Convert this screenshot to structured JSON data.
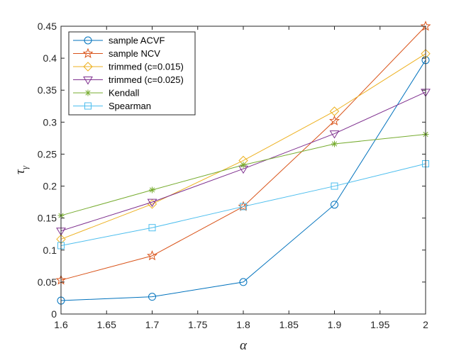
{
  "chart_data": {
    "type": "line",
    "title": "",
    "xlabel": "α",
    "ylabel": "τγ",
    "ylabel_main": "τ",
    "ylabel_sub": "γ",
    "xlim": [
      1.6,
      2.0
    ],
    "ylim": [
      0,
      0.45
    ],
    "x_ticks": [
      1.6,
      1.65,
      1.7,
      1.75,
      1.8,
      1.85,
      1.9,
      1.95,
      2
    ],
    "x_tick_labels": [
      "1.6",
      "1.65",
      "1.7",
      "1.75",
      "1.8",
      "1.85",
      "1.9",
      "1.95",
      "2"
    ],
    "y_ticks": [
      0,
      0.05,
      0.1,
      0.15,
      0.2,
      0.25,
      0.3,
      0.35,
      0.4,
      0.45
    ],
    "y_tick_labels": [
      "0",
      "0.05",
      "0.1",
      "0.15",
      "0.2",
      "0.25",
      "0.3",
      "0.35",
      "0.4",
      "0.45"
    ],
    "grid": false,
    "legend_position": "top-left",
    "x": [
      1.6,
      1.7,
      1.8,
      1.9,
      2.0
    ],
    "series": [
      {
        "name": "sample ACVF",
        "marker": "circle",
        "color": "#0072BD",
        "values": [
          0.021,
          0.027,
          0.05,
          0.171,
          0.397
        ]
      },
      {
        "name": "sample NCV",
        "marker": "star",
        "color": "#D95319",
        "values": [
          0.053,
          0.091,
          0.168,
          0.302,
          0.45
        ]
      },
      {
        "name": "trimmed (c=0.015)",
        "marker": "diamond",
        "color": "#EDB120",
        "values": [
          0.117,
          0.172,
          0.24,
          0.317,
          0.407
        ]
      },
      {
        "name": "trimmed (c=0.025)",
        "marker": "triangle-down",
        "color": "#7E2F8E",
        "values": [
          0.13,
          0.175,
          0.227,
          0.282,
          0.347
        ]
      },
      {
        "name": "Kendall",
        "marker": "asterisk",
        "color": "#77AC30",
        "values": [
          0.154,
          0.194,
          0.233,
          0.266,
          0.281
        ]
      },
      {
        "name": "Spearman",
        "marker": "square",
        "color": "#4DBEEE",
        "values": [
          0.107,
          0.135,
          0.168,
          0.2,
          0.235
        ]
      }
    ]
  }
}
